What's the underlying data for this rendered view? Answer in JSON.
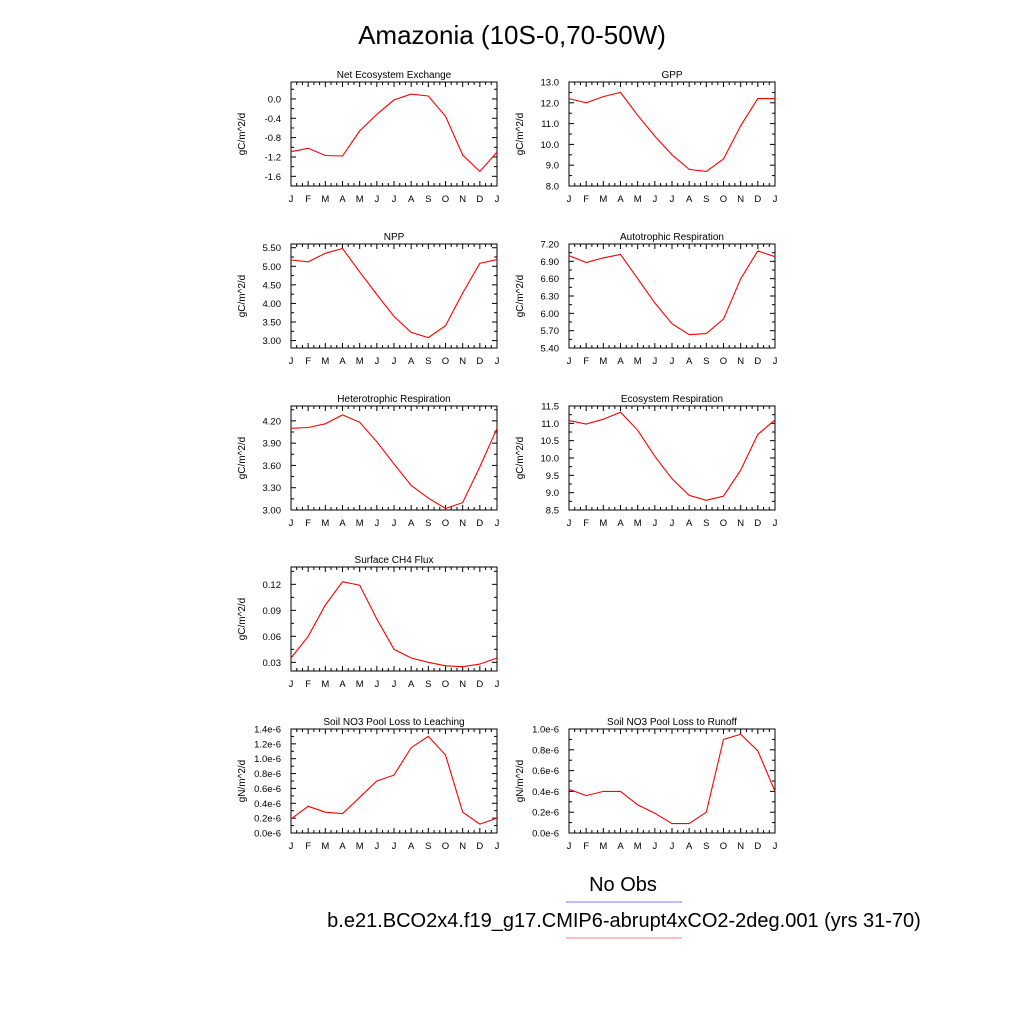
{
  "figure": {
    "title": "Amazonia (10S-0,70-50W)",
    "legend": {
      "obs_label": "No Obs",
      "obs_color": "#7f7fff",
      "model_label": "b.e21.BCO2x4.f19_g17.CMIP6-abrupt4xCO2-2deg.001 (yrs 31-70)",
      "model_color": "#ff7f7f"
    },
    "line_color": "#ff0000"
  },
  "chart_data": [
    {
      "type": "line",
      "title": "Net Ecosystem Exchange",
      "ylabel": "gC/m^2/d",
      "categories": [
        "J",
        "F",
        "M",
        "A",
        "M",
        "J",
        "J",
        "A",
        "S",
        "O",
        "N",
        "D",
        "J"
      ],
      "ylim": [
        -1.8,
        0.35
      ],
      "yticks": [
        "0.0",
        "-0.4",
        "-0.8",
        "-1.2",
        "-1.6"
      ],
      "ytick_values": [
        0.0,
        -0.4,
        -0.8,
        -1.2,
        -1.6
      ],
      "series": [
        {
          "values": [
            -1.09,
            -1.02,
            -1.17,
            -1.18,
            -0.66,
            -0.32,
            -0.02,
            0.1,
            0.06,
            -0.36,
            -1.16,
            -1.5,
            -1.1
          ]
        }
      ]
    },
    {
      "type": "line",
      "title": "GPP",
      "ylabel": "gC/m^2/d",
      "categories": [
        "J",
        "F",
        "M",
        "A",
        "M",
        "J",
        "J",
        "A",
        "S",
        "O",
        "N",
        "D",
        "J"
      ],
      "ylim": [
        8.0,
        13.0
      ],
      "yticks": [
        "13.0",
        "12.0",
        "11.0",
        "10.0",
        "9.0",
        "8.0"
      ],
      "ytick_values": [
        13.0,
        12.0,
        11.0,
        10.0,
        9.0,
        8.0
      ],
      "series": [
        {
          "values": [
            12.2,
            12.0,
            12.3,
            12.5,
            11.4,
            10.4,
            9.5,
            8.8,
            8.7,
            9.3,
            10.9,
            12.2,
            12.2
          ]
        }
      ]
    },
    {
      "type": "line",
      "title": "NPP",
      "ylabel": "gC/m^2/d",
      "categories": [
        "J",
        "F",
        "M",
        "A",
        "M",
        "J",
        "J",
        "A",
        "S",
        "O",
        "N",
        "D",
        "J"
      ],
      "ylim": [
        2.8,
        5.6
      ],
      "yticks": [
        "5.50",
        "5.00",
        "4.50",
        "4.00",
        "3.50",
        "3.00"
      ],
      "ytick_values": [
        5.5,
        5.0,
        4.5,
        4.0,
        3.5,
        3.0
      ],
      "series": [
        {
          "values": [
            5.17,
            5.12,
            5.35,
            5.48,
            4.85,
            4.24,
            3.65,
            3.22,
            3.08,
            3.4,
            4.28,
            5.08,
            5.18
          ]
        }
      ]
    },
    {
      "type": "line",
      "title": "Autotrophic Respiration",
      "ylabel": "gC/m^2/d",
      "categories": [
        "J",
        "F",
        "M",
        "A",
        "M",
        "J",
        "J",
        "A",
        "S",
        "O",
        "N",
        "D",
        "J"
      ],
      "ylim": [
        5.4,
        7.2
      ],
      "yticks": [
        "7.20",
        "6.90",
        "6.60",
        "6.30",
        "6.00",
        "5.70",
        "5.40"
      ],
      "ytick_values": [
        7.2,
        6.9,
        6.6,
        6.3,
        6.0,
        5.7,
        5.4
      ],
      "series": [
        {
          "values": [
            7.0,
            6.88,
            6.96,
            7.02,
            6.6,
            6.18,
            5.82,
            5.63,
            5.65,
            5.9,
            6.6,
            7.08,
            6.98
          ]
        }
      ]
    },
    {
      "type": "line",
      "title": "Heterotrophic Respiration",
      "ylabel": "gC/m^2/d",
      "categories": [
        "J",
        "F",
        "M",
        "A",
        "M",
        "J",
        "J",
        "A",
        "S",
        "O",
        "N",
        "D",
        "J"
      ],
      "ylim": [
        3.0,
        4.4
      ],
      "yticks": [
        "4.20",
        "3.90",
        "3.60",
        "3.30",
        "3.00"
      ],
      "ytick_values": [
        4.2,
        3.9,
        3.6,
        3.3,
        3.0
      ],
      "series": [
        {
          "values": [
            4.1,
            4.11,
            4.16,
            4.28,
            4.18,
            3.92,
            3.62,
            3.33,
            3.16,
            3.02,
            3.1,
            3.58,
            4.1
          ]
        }
      ]
    },
    {
      "type": "line",
      "title": "Ecosystem Respiration",
      "ylabel": "gC/m^2/d",
      "categories": [
        "J",
        "F",
        "M",
        "A",
        "M",
        "J",
        "J",
        "A",
        "S",
        "O",
        "N",
        "D",
        "J"
      ],
      "ylim": [
        8.5,
        11.5
      ],
      "yticks": [
        "11.5",
        "11.0",
        "10.5",
        "10.0",
        "9.5",
        "9.0",
        "8.5"
      ],
      "ytick_values": [
        11.5,
        11.0,
        10.5,
        10.0,
        9.5,
        9.0,
        8.5
      ],
      "series": [
        {
          "values": [
            11.08,
            10.98,
            11.12,
            11.32,
            10.8,
            10.05,
            9.4,
            8.92,
            8.78,
            8.9,
            9.65,
            10.68,
            11.1
          ]
        }
      ]
    },
    {
      "type": "line",
      "title": "Surface CH4 Flux",
      "ylabel": "gC/m^2/d",
      "categories": [
        "J",
        "F",
        "M",
        "A",
        "M",
        "J",
        "J",
        "A",
        "S",
        "O",
        "N",
        "D",
        "J"
      ],
      "ylim": [
        0.02,
        0.14
      ],
      "yticks": [
        "0.12",
        "0.09",
        "0.06",
        "0.03"
      ],
      "ytick_values": [
        0.12,
        0.09,
        0.06,
        0.03
      ],
      "series": [
        {
          "values": [
            0.035,
            0.06,
            0.096,
            0.123,
            0.119,
            0.08,
            0.045,
            0.035,
            0.03,
            0.026,
            0.025,
            0.028,
            0.035
          ]
        }
      ]
    },
    {
      "type": "line",
      "title": "Soil NO3 Pool Loss to Leaching",
      "ylabel": "gN/m^2/d",
      "categories": [
        "J",
        "F",
        "M",
        "A",
        "M",
        "J",
        "J",
        "A",
        "S",
        "O",
        "N",
        "D",
        "J"
      ],
      "ylim": [
        0.0,
        1.4
      ],
      "yticks": [
        "1.4e-6",
        "1.2e-6",
        "1.0e-6",
        "0.8e-6",
        "0.6e-6",
        "0.4e-6",
        "0.2e-6",
        "0.0e-6"
      ],
      "ytick_values": [
        1.4,
        1.2,
        1.0,
        0.8,
        0.6,
        0.4,
        0.2,
        0.0
      ],
      "series": [
        {
          "values": [
            0.19,
            0.36,
            0.28,
            0.26,
            0.48,
            0.7,
            0.78,
            1.15,
            1.3,
            1.05,
            0.28,
            0.12,
            0.2
          ]
        }
      ]
    },
    {
      "type": "line",
      "title": "Soil NO3 Pool Loss to Runoff",
      "ylabel": "gN/m^2/d",
      "categories": [
        "J",
        "F",
        "M",
        "A",
        "M",
        "J",
        "J",
        "A",
        "S",
        "O",
        "N",
        "D",
        "J"
      ],
      "ylim": [
        0.0,
        1.0
      ],
      "yticks": [
        "1.0e-6",
        "0.8e-6",
        "0.6e-6",
        "0.4e-6",
        "0.2e-6",
        "0.0e-6"
      ],
      "ytick_values": [
        1.0,
        0.8,
        0.6,
        0.4,
        0.2,
        0.0
      ],
      "series": [
        {
          "values": [
            0.42,
            0.36,
            0.4,
            0.4,
            0.27,
            0.19,
            0.09,
            0.09,
            0.2,
            0.9,
            0.95,
            0.79,
            0.4
          ]
        }
      ]
    }
  ]
}
